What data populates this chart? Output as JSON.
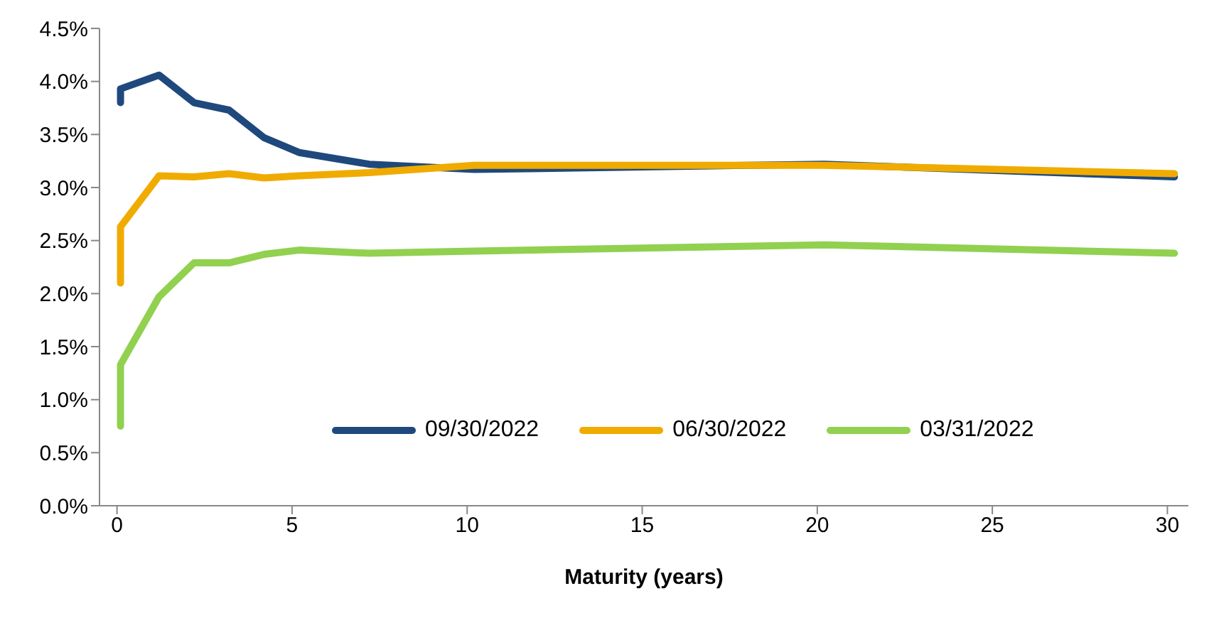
{
  "chart_data": {
    "type": "line",
    "xlabel": "Maturity (years)",
    "x": [
      0.1,
      0.1,
      1.2,
      2.2,
      3.2,
      4.2,
      5.2,
      7.2,
      10.2,
      20.2,
      30.2
    ],
    "series": [
      {
        "name": "09/30/2022",
        "color": "#1f497d",
        "values": [
          3.8,
          3.93,
          4.06,
          3.8,
          3.73,
          3.47,
          3.33,
          3.22,
          3.17,
          3.22,
          3.1
        ]
      },
      {
        "name": "06/30/2022",
        "color": "#f0ab00",
        "values": [
          2.1,
          2.63,
          3.11,
          3.1,
          3.13,
          3.09,
          3.11,
          3.14,
          3.21,
          3.21,
          3.13
        ]
      },
      {
        "name": "03/31/2022",
        "color": "#92d050",
        "values": [
          0.75,
          1.33,
          1.97,
          2.29,
          2.29,
          2.37,
          2.41,
          2.38,
          2.4,
          2.46,
          2.38
        ]
      }
    ],
    "xlim": [
      -0.5,
      30.6
    ],
    "xticks": [
      0,
      5,
      10,
      15,
      20,
      25,
      30
    ],
    "ylim": [
      0,
      4.5
    ],
    "yticks": [
      {
        "value": 0,
        "label": "0.0%"
      },
      {
        "value": 0.5,
        "label": "0.5%"
      },
      {
        "value": 1,
        "label": "1.0%"
      },
      {
        "value": 1.5,
        "label": "1.5%"
      },
      {
        "value": 2,
        "label": "2.0%"
      },
      {
        "value": 2.5,
        "label": "2.5%"
      },
      {
        "value": 3,
        "label": "3.0%"
      },
      {
        "value": 3.5,
        "label": "3.5%"
      },
      {
        "value": 4,
        "label": "4.0%"
      },
      {
        "value": 4.5,
        "label": "4.5%"
      }
    ],
    "grid": false,
    "legend": "bottom right",
    "marker": "none",
    "line_style": "solid"
  }
}
